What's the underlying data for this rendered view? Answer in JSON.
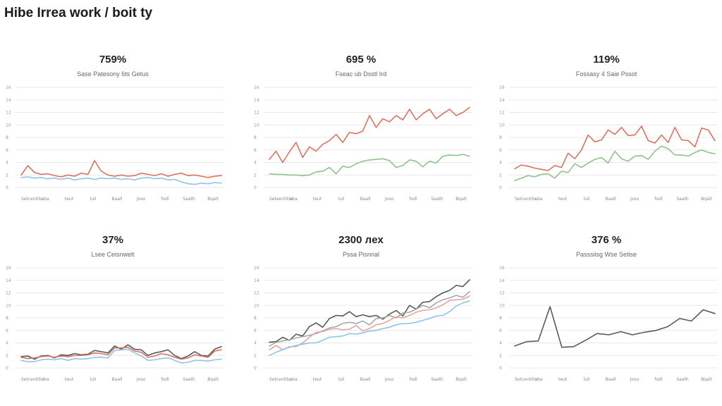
{
  "page": {
    "title": "Hibe Irrea work / boit ty"
  },
  "colors": {
    "red": "#d9735f",
    "blue": "#8fc4ea",
    "green": "#8cc48a",
    "dark": "#595959",
    "gray": "#a8a8a8",
    "grid": "#e8e8e8"
  },
  "chart_data": [
    {
      "type": "line",
      "headline": "759%",
      "title": "Sase Patesony 6ts Getus",
      "yticks": [
        "16",
        "14",
        "12",
        "10",
        "8",
        "6",
        "4",
        "2",
        "0"
      ],
      "ylim": [
        0,
        16
      ],
      "x_labels": [
        "Setcentito",
        "uba",
        "teut",
        "luli",
        "Baall",
        "Joso",
        "fodl",
        "Saath",
        "Bqalt"
      ],
      "series": [
        {
          "name": "red",
          "color": "#d9735f",
          "values": [
            2,
            3.5,
            2.4,
            2.1,
            2.2,
            1.9,
            1.7,
            2,
            1.8,
            2.3,
            2.1,
            4.3,
            2.6,
            2,
            1.8,
            2,
            1.8,
            1.9,
            2.3,
            2.1,
            1.9,
            2.2,
            1.8,
            2.1,
            2.3,
            1.9,
            2,
            1.8,
            1.6,
            1.8,
            1.9
          ]
        },
        {
          "name": "blue",
          "color": "#8fc4ea",
          "values": [
            1.6,
            1.7,
            1.5,
            1.6,
            1.4,
            1.5,
            1.3,
            1.5,
            1.2,
            1.4,
            1.5,
            1.3,
            1.5,
            1.4,
            1.5,
            1.3,
            1.4,
            1.2,
            1.5,
            1.6,
            1.4,
            1.5,
            1.2,
            1.3,
            0.9,
            0.6,
            0.5,
            0.7,
            0.6,
            0.8,
            0.7
          ]
        }
      ]
    },
    {
      "type": "line",
      "headline": "695 %",
      "title": "Fseac ub Dsstl Ird",
      "yticks": [
        "16",
        "14",
        "12",
        "10",
        "8",
        "6",
        "4",
        "2",
        "0"
      ],
      "ylim": [
        0,
        16
      ],
      "x_labels": [
        "Seteentitio",
        "uba",
        "teut",
        "luli",
        "Baall",
        "Joso",
        "fodl",
        "Saath",
        "Bqalt"
      ],
      "series": [
        {
          "name": "red",
          "color": "#d9735f",
          "values": [
            4.5,
            5.8,
            4,
            5.7,
            7.2,
            4.8,
            6.5,
            5.8,
            6.9,
            7.5,
            8.5,
            7.2,
            8.8,
            8.6,
            9,
            11.5,
            9.6,
            11,
            10.5,
            11.5,
            10.8,
            12.5,
            10.8,
            11.8,
            12.5,
            11,
            11.8,
            12.5,
            11.5,
            12,
            12.8
          ]
        },
        {
          "name": "green",
          "color": "#8cc48a",
          "values": [
            2.2,
            2.1,
            2.1,
            2,
            2,
            1.9,
            2,
            2.5,
            2.6,
            3.2,
            2.2,
            3.4,
            3.2,
            3.8,
            4.2,
            4.4,
            4.5,
            4.6,
            4.3,
            3.2,
            3.5,
            4.4,
            4.2,
            3.3,
            4.2,
            3.9,
            5,
            5.2,
            5.1,
            5.3,
            5
          ]
        }
      ]
    },
    {
      "type": "line",
      "headline": "119%",
      "title": "Fossasy 4 Saie Pssot",
      "yticks": [
        "16",
        "14",
        "12",
        "10",
        "8",
        "6",
        "4",
        "2",
        "0"
      ],
      "ylim": [
        0,
        16
      ],
      "x_labels": [
        "Setcentito",
        "uba",
        "teut",
        "luli",
        "Baall",
        "Joso",
        "fodl",
        "Saath",
        "Bqalt"
      ],
      "series": [
        {
          "name": "red",
          "color": "#d9735f",
          "values": [
            3,
            3.6,
            3.4,
            3.1,
            2.9,
            2.7,
            3.5,
            3.2,
            5.5,
            4.6,
            6,
            8.4,
            7.3,
            7.6,
            9.2,
            8.5,
            9.6,
            8.3,
            8.4,
            9.8,
            7.5,
            7.1,
            8.4,
            7.2,
            9.6,
            7.6,
            7.5,
            6.5,
            9.5,
            9.2,
            7.5
          ]
        },
        {
          "name": "green",
          "color": "#8cc48a",
          "values": [
            1.1,
            1.5,
            1.9,
            1.7,
            2.1,
            2.2,
            1.5,
            2.6,
            2.4,
            3.8,
            3.2,
            3.9,
            4.5,
            4.8,
            3.9,
            5.8,
            4.6,
            4.2,
            5,
            5.1,
            4.5,
            5.8,
            6.6,
            6.2,
            5.2,
            5.2,
            5,
            5.6,
            6,
            5.6,
            5.4
          ]
        }
      ]
    },
    {
      "type": "line",
      "headline": "37%",
      "title": "Lsee Ceisnwelt",
      "yticks": [
        "16",
        "14",
        "12",
        "10",
        "8",
        "6",
        "4",
        "2",
        "0"
      ],
      "ylim": [
        0,
        16
      ],
      "x_labels": [
        "Setcentitio",
        "uba",
        "teut",
        "luli",
        "Baall",
        "Joso",
        "fodl",
        "Saath",
        "Bqalt"
      ],
      "series": [
        {
          "name": "dark",
          "color": "#595959",
          "values": [
            1.8,
            1.9,
            1.4,
            1.9,
            2,
            1.6,
            2.1,
            2,
            2.3,
            2.1,
            2.2,
            2.8,
            2.6,
            2.4,
            3.5,
            3,
            3.7,
            3,
            2.9,
            2,
            2.4,
            2.6,
            2.9,
            2,
            1.5,
            1.9,
            2.6,
            2,
            1.9,
            3,
            3.4
          ]
        },
        {
          "name": "red",
          "color": "#d9735f",
          "values": [
            1.7,
            1.5,
            1.6,
            1.8,
            1.9,
            1.7,
            1.9,
            1.8,
            2,
            2,
            2.1,
            2.4,
            2.3,
            2.1,
            3.2,
            3.2,
            3.3,
            2.7,
            2.5,
            1.7,
            1.9,
            2.3,
            2.1,
            1.7,
            1.4,
            1.6,
            2.1,
            1.9,
            1.7,
            2.7,
            2.9
          ]
        },
        {
          "name": "blue",
          "color": "#8fc4ea",
          "values": [
            1.2,
            1,
            1,
            1.3,
            1.4,
            1.3,
            1.5,
            1.2,
            1.5,
            1.4,
            1.5,
            1.7,
            1.7,
            1.6,
            2.8,
            2.9,
            3,
            2.4,
            1.9,
            1.2,
            1.3,
            1.5,
            1.6,
            1.2,
            0.8,
            0.9,
            1.2,
            1.2,
            1.1,
            1.3,
            1.4
          ]
        }
      ]
    },
    {
      "type": "line",
      "headline": "2300 лex",
      "title": "Pssa Pisnnal",
      "yticks": [
        "16",
        "14",
        "12",
        "10",
        "8",
        "6",
        "4",
        "2",
        "0"
      ],
      "ylim": [
        0,
        16
      ],
      "x_labels": [
        "Setcentito",
        "uba",
        "teut",
        "luli",
        "Baall",
        "Joso",
        "fodl",
        "Saath",
        "Bqalt"
      ],
      "series": [
        {
          "name": "dark",
          "color": "#595959",
          "values": [
            4.1,
            4.2,
            4.9,
            4.4,
            5.4,
            5.1,
            6.6,
            7.2,
            6.5,
            7.9,
            8.4,
            8.3,
            9,
            8.2,
            8.5,
            8.2,
            8.4,
            7.8,
            8.6,
            9.2,
            8.3,
            10,
            9.4,
            10.5,
            10.6,
            11.4,
            12,
            12.4,
            13.2,
            13,
            14.1
          ]
        },
        {
          "name": "gray",
          "color": "#a8a8a8",
          "values": [
            3.5,
            4.1,
            4.3,
            4.5,
            4.8,
            5,
            5.2,
            5.5,
            5.9,
            6.4,
            6.6,
            7.1,
            7.3,
            7.1,
            7.5,
            6.9,
            7.9,
            8,
            8.4,
            8,
            8.8,
            8.9,
            9.4,
            10,
            9.6,
            10.4,
            10.9,
            11.2,
            11.6,
            11.3,
            12.2
          ]
        },
        {
          "name": "red",
          "color": "#e3a89e",
          "values": [
            2.9,
            3.6,
            2.9,
            3.4,
            3.4,
            4,
            4.9,
            5.7,
            5.8,
            6.2,
            6.3,
            6.1,
            6.2,
            6.8,
            5.9,
            6.3,
            6.9,
            7.1,
            7.6,
            8.2,
            8,
            8.4,
            8.9,
            9.2,
            9.3,
            9.6,
            10.1,
            10.8,
            10.9,
            11,
            11.5
          ]
        },
        {
          "name": "blue",
          "color": "#8fc4ea",
          "values": [
            2,
            2.5,
            2.9,
            3.3,
            3.6,
            3.8,
            4,
            4,
            4.4,
            4.9,
            5,
            5.1,
            5.5,
            5.4,
            5.6,
            5.9,
            6,
            6.3,
            6.5,
            6.9,
            7.1,
            7.1,
            7.3,
            7.6,
            7.9,
            8.3,
            8.4,
            9,
            9.9,
            10.4,
            10.7
          ]
        }
      ]
    },
    {
      "type": "line",
      "headline": "376 %",
      "title": "Passsiisg Wse Setise",
      "yticks": [
        "16",
        "14",
        "12",
        "10",
        "8",
        "6",
        "4",
        "2",
        "0"
      ],
      "ylim": [
        0,
        16
      ],
      "x_labels": [
        "Setcentitio",
        "uba",
        "teut",
        "luli",
        "Baall",
        "Joso",
        "fodl",
        "Saath",
        "Bqalt"
      ],
      "series": [
        {
          "name": "dark",
          "color": "#595959",
          "values": [
            3.5,
            4.2,
            4.3,
            9.8,
            3.3,
            3.4,
            4.4,
            5.5,
            5.3,
            5.8,
            5.3,
            5.7,
            6,
            6.6,
            7.9,
            7.5,
            9.3,
            8.7
          ]
        }
      ]
    }
  ]
}
